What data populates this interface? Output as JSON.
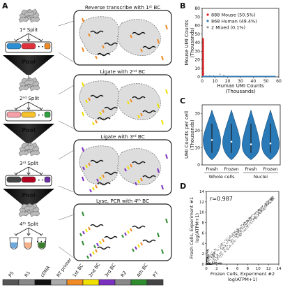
{
  "panels": {
    "A": "A",
    "B": "B",
    "C": "C",
    "D": "D"
  },
  "splits": {
    "s1": {
      "ord": "1",
      "sup": "st",
      "word": "Split"
    },
    "s2": {
      "ord": "2",
      "sup": "nd",
      "word": "Split"
    },
    "s3": {
      "ord": "3",
      "sup": "rd",
      "word": "Split"
    },
    "s4": {
      "ord": "4",
      "sup": "th",
      "word": "Split"
    }
  },
  "pool": "Pool",
  "steps": {
    "s1": {
      "main": "Reverse transcribe with 1",
      "sup": "st",
      "tail": " BC"
    },
    "s2": {
      "main": "Ligate with 2",
      "sup": "nd",
      "tail": " BC"
    },
    "s3": {
      "main": "Ligate with 3",
      "sup": "rd",
      "tail": " BC"
    },
    "s4": {
      "main": "Lyse, PCR with 4",
      "sup": "th",
      "tail": " BC"
    }
  },
  "legend_bar": {
    "labels": [
      "P5",
      "R1",
      "cDNA",
      "RT primer",
      "1st BC",
      "2nd BC",
      "3rd BC",
      "R2",
      "4th BC",
      "P7"
    ],
    "colors": [
      "#555555",
      "#888888",
      "#111111",
      "#aaaaaa",
      "#f08a24",
      "#f0e000",
      "#7b2fbe",
      "#888888",
      "#2e8b2e",
      "#444444"
    ]
  },
  "chart_data": [
    {
      "panel": "B",
      "type": "scatter",
      "xlabel": "Human UMI Counts\n(Thousands)",
      "ylabel": "Mouse UMI Counts\n(Thousands)",
      "xlim": [
        0,
        60
      ],
      "ylim": [
        0,
        80
      ],
      "xticks": [
        0,
        10,
        20,
        30,
        40,
        50,
        60
      ],
      "yticks": [
        0,
        10,
        20,
        30,
        40,
        50,
        60,
        70,
        80
      ],
      "series": [
        {
          "name": "888 Mouse (50.5%)",
          "color": "#e41a1c",
          "points": [
            [
              0.2,
              2
            ],
            [
              0.3,
              5
            ],
            [
              0.4,
              9
            ],
            [
              0.2,
              13
            ],
            [
              0.5,
              17
            ],
            [
              0.3,
              21
            ],
            [
              0.4,
              25
            ],
            [
              0.6,
              28
            ],
            [
              0.3,
              31
            ],
            [
              0.5,
              34
            ],
            [
              0.4,
              37
            ],
            [
              0.7,
              40
            ],
            [
              0.5,
              3
            ],
            [
              0.8,
              6
            ],
            [
              1.0,
              11
            ],
            [
              0.6,
              15
            ],
            [
              0.9,
              8
            ],
            [
              1.1,
              4
            ],
            [
              0.3,
              45
            ],
            [
              0.5,
              7
            ]
          ]
        },
        {
          "name": "868 Human (49.4%)",
          "color": "#377eb8",
          "points": [
            [
              2,
              0.3
            ],
            [
              5,
              0.5
            ],
            [
              8,
              0.4
            ],
            [
              11,
              0.6
            ],
            [
              14,
              0.3
            ],
            [
              17,
              0.8
            ],
            [
              20,
              0.5
            ],
            [
              24,
              0.4
            ],
            [
              28,
              0.7
            ],
            [
              32,
              0.5
            ],
            [
              36,
              0.6
            ],
            [
              40,
              0.4
            ],
            [
              44,
              0.3
            ],
            [
              49,
              0.5
            ],
            [
              53,
              0.4
            ],
            [
              57,
              0.6
            ],
            [
              3,
              0.9
            ],
            [
              6,
              1.1
            ],
            [
              9,
              1.0
            ],
            [
              1.5,
              0.4
            ]
          ]
        },
        {
          "name": "2 Mixed (0.1%)",
          "color": "#999999",
          "points": [
            [
              14,
              3
            ],
            [
              17,
              2
            ]
          ]
        }
      ]
    },
    {
      "panel": "C",
      "type": "violin",
      "ylabel": "UMI Counts per cell\n(Thousands)",
      "ylim": [
        0,
        35
      ],
      "yticks": [
        0,
        10,
        20,
        30
      ],
      "categories": [
        "Fresh",
        "Frozen",
        "Fresh",
        "Frozen"
      ],
      "groups": [
        "Whole cells",
        "Nuclei"
      ],
      "medians": [
        14.5,
        13.5,
        12,
        12.5
      ],
      "color": "#2a7ab8"
    },
    {
      "panel": "D",
      "type": "scatter",
      "annotation": "r=0.987",
      "xlabel": "Frozen Cells, Experiment #2\nlog(ATPM+1)",
      "ylabel": "Fresh Cells, Experiment #1\nlog(ATPM+1)",
      "xlim": [
        0,
        14
      ],
      "ylim": [
        0,
        14
      ],
      "xticks": [
        0,
        2,
        4,
        6,
        8,
        10,
        12,
        14
      ],
      "yticks": [
        0,
        2,
        4,
        6,
        8,
        10,
        12,
        14
      ]
    }
  ]
}
